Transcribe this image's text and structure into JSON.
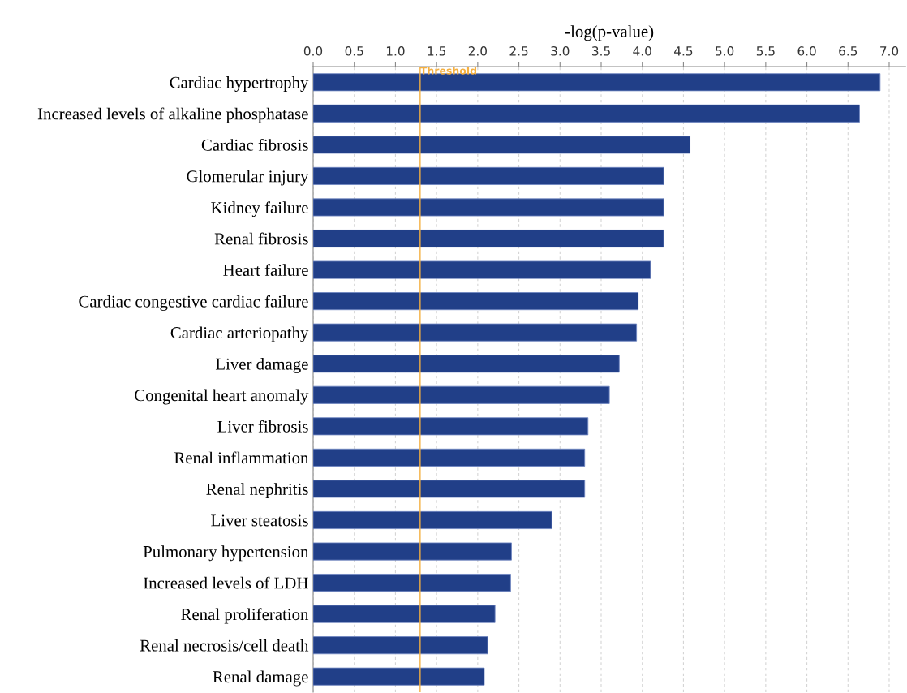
{
  "chart_data": {
    "type": "bar",
    "orientation": "horizontal",
    "xlabel": "-log(p-value)",
    "categories": [
      "Cardiac hypertrophy",
      "Increased levels of alkaline phosphatase",
      "Cardiac fibrosis",
      "Glomerular injury",
      "Kidney failure",
      "Renal fibrosis",
      "Heart failure",
      "Cardiac congestive cardiac failure",
      "Cardiac arteriopathy",
      "Liver damage",
      "Congenital heart anomaly",
      "Liver fibrosis",
      "Renal inflammation",
      "Renal nephritis",
      "Liver steatosis",
      "Pulmonary hypertension",
      "Increased levels of LDH",
      "Renal proliferation",
      "Renal necrosis/cell death",
      "Renal damage"
    ],
    "values": [
      6.89,
      6.64,
      4.58,
      4.26,
      4.26,
      4.26,
      4.1,
      3.95,
      3.93,
      3.72,
      3.6,
      3.34,
      3.3,
      3.3,
      2.9,
      2.41,
      2.4,
      2.21,
      2.12,
      2.08
    ],
    "color": "#213f88",
    "xlim": [
      0,
      7.2
    ],
    "xticks": [
      {
        "value": 0,
        "label": "0.0"
      },
      {
        "value": 0.5,
        "label": "0.5"
      },
      {
        "value": 1,
        "label": "1.0"
      },
      {
        "value": 1.5,
        "label": "1.5"
      },
      {
        "value": 2,
        "label": "2.0"
      },
      {
        "value": 2.5,
        "label": "2.5"
      },
      {
        "value": 3,
        "label": "3.0"
      },
      {
        "value": 3.5,
        "label": "3.5"
      },
      {
        "value": 4,
        "label": "4.0"
      },
      {
        "value": 4.5,
        "label": "4.5"
      },
      {
        "value": 5,
        "label": "5.0"
      },
      {
        "value": 5.5,
        "label": "5.5"
      },
      {
        "value": 6,
        "label": "6.0"
      },
      {
        "value": 6.5,
        "label": "6.5"
      },
      {
        "value": 7,
        "label": "7.0"
      }
    ],
    "grid": "x",
    "ref_lines": [
      {
        "axis": "x",
        "value": 1.3,
        "label": "Threshold",
        "color": "#f5b041"
      }
    ],
    "legend": false
  }
}
